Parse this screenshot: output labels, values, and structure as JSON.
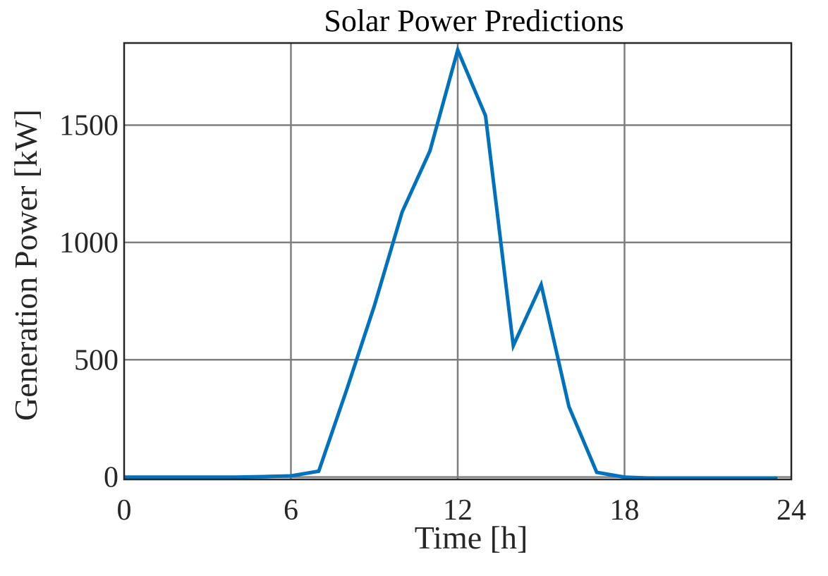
{
  "chart_data": {
    "type": "line",
    "title": "Solar Power Predictions",
    "xlabel": "Time [h]",
    "ylabel": "Generation Power [kW]",
    "xlim": [
      0,
      24
    ],
    "ylim": [
      -10,
      1850
    ],
    "xticks": [
      0,
      6,
      12,
      18,
      24
    ],
    "yticks": [
      0,
      500,
      1000,
      1500
    ],
    "grid": true,
    "series": [
      {
        "color": "#0072BD",
        "x": [
          0,
          1,
          2,
          3,
          4,
          5,
          6,
          7,
          8,
          9,
          10,
          11,
          12,
          13,
          14,
          15,
          16,
          17,
          18,
          19,
          20,
          21,
          22,
          23.5
        ],
        "y": [
          0,
          0,
          0,
          0,
          0,
          2,
          5,
          25,
          370,
          730,
          1130,
          1390,
          1820,
          1540,
          560,
          820,
          300,
          20,
          0,
          -5,
          -5,
          -5,
          -5,
          -5
        ]
      }
    ]
  }
}
